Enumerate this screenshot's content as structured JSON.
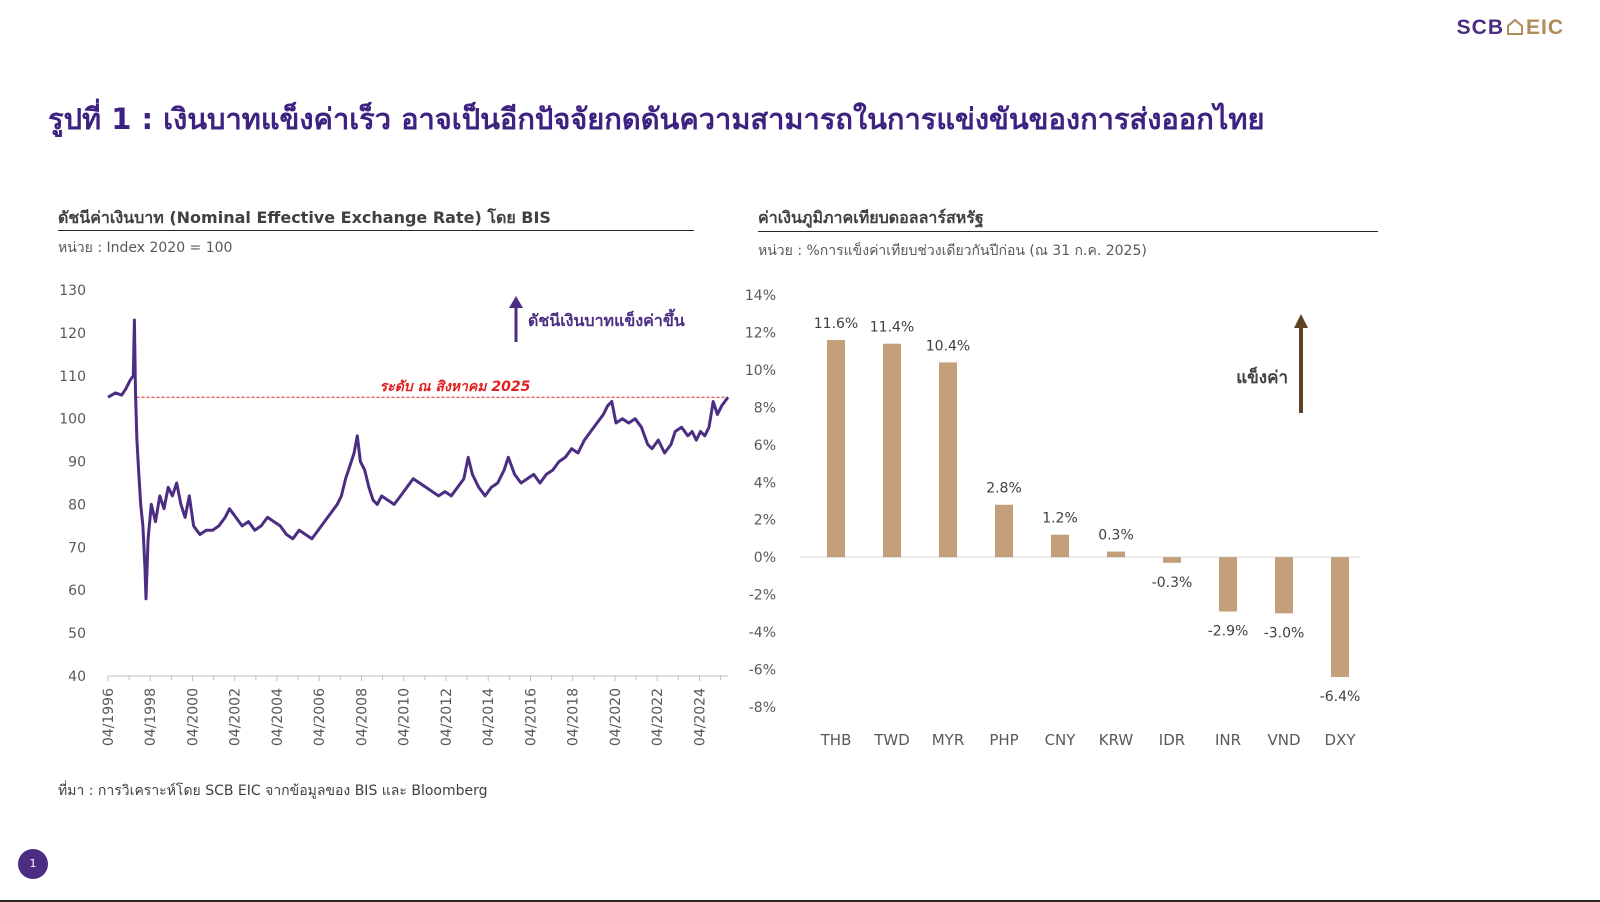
{
  "brand": {
    "scb": "SCB",
    "eic": "EIC"
  },
  "page_title": "รูปที่ 1 : เงินบาทแข็งค่าเร็ว อาจเป็นอีกปัจจัยกดดันความสามารถในการแข่งขันของการส่งออกไทย",
  "left_chart": {
    "title": "ดัชนีค่าเงินบาท (Nominal Effective Exchange Rate) โดย BIS",
    "unit": "หน่วย : Index 2020 = 100"
  },
  "right_chart": {
    "title": "ค่าเงินภูมิภาคเทียบดอลลาร์สหรัฐ",
    "unit": "หน่วย : %การแข็งค่าเทียบช่วงเดียวกันปีก่อน (ณ 31 ก.ค. 2025)"
  },
  "source": "ที่มา : การวิเคราะห์โดย SCB EIC จากข้อมูลของ BIS และ Bloomberg",
  "page_number": "1",
  "colors": {
    "brand_purple": "#3d2281",
    "line": "#4b2e83",
    "bar": "#c4a07a",
    "ref_red": "#e02020",
    "arrow_brown": "#5c4326"
  },
  "chart_data": [
    {
      "type": "line",
      "ylim": [
        40,
        130
      ],
      "yticks": [
        "40",
        "50",
        "60",
        "70",
        "80",
        "90",
        "100",
        "110",
        "120",
        "130"
      ],
      "xlabels": [
        "04/1996",
        "04/1998",
        "04/2000",
        "04/2002",
        "04/2004",
        "04/2006",
        "04/2008",
        "04/2010",
        "04/2012",
        "04/2014",
        "04/2016",
        "04/2018",
        "04/2020",
        "04/2022",
        "04/2024"
      ],
      "xlim": [
        1996.25,
        2025.6
      ],
      "series": [
        {
          "points": [
            [
              1996.25,
              105
            ],
            [
              1996.6,
              106
            ],
            [
              1996.9,
              105.5
            ],
            [
              1997.1,
              107
            ],
            [
              1997.3,
              109
            ],
            [
              1997.45,
              110
            ],
            [
              1997.5,
              123
            ],
            [
              1997.55,
              106
            ],
            [
              1997.62,
              95
            ],
            [
              1997.7,
              88
            ],
            [
              1997.8,
              80
            ],
            [
              1997.9,
              75
            ],
            [
              1998.0,
              65
            ],
            [
              1998.05,
              58
            ],
            [
              1998.15,
              72
            ],
            [
              1998.3,
              80
            ],
            [
              1998.5,
              76
            ],
            [
              1998.7,
              82
            ],
            [
              1998.9,
              79
            ],
            [
              1999.1,
              84
            ],
            [
              1999.3,
              82
            ],
            [
              1999.5,
              85
            ],
            [
              1999.7,
              80
            ],
            [
              1999.9,
              77
            ],
            [
              2000.1,
              82
            ],
            [
              2000.3,
              75
            ],
            [
              2000.6,
              73
            ],
            [
              2000.9,
              74
            ],
            [
              2001.2,
              74
            ],
            [
              2001.5,
              75
            ],
            [
              2001.8,
              77
            ],
            [
              2002.0,
              79
            ],
            [
              2002.3,
              77
            ],
            [
              2002.6,
              75
            ],
            [
              2002.9,
              76
            ],
            [
              2003.2,
              74
            ],
            [
              2003.5,
              75
            ],
            [
              2003.8,
              77
            ],
            [
              2004.1,
              76
            ],
            [
              2004.4,
              75
            ],
            [
              2004.7,
              73
            ],
            [
              2005.0,
              72
            ],
            [
              2005.3,
              74
            ],
            [
              2005.6,
              73
            ],
            [
              2005.9,
              72
            ],
            [
              2006.2,
              74
            ],
            [
              2006.5,
              76
            ],
            [
              2006.8,
              78
            ],
            [
              2007.1,
              80
            ],
            [
              2007.3,
              82
            ],
            [
              2007.5,
              86
            ],
            [
              2007.7,
              89
            ],
            [
              2007.9,
              92
            ],
            [
              2008.05,
              96
            ],
            [
              2008.2,
              90
            ],
            [
              2008.4,
              88
            ],
            [
              2008.6,
              84
            ],
            [
              2008.8,
              81
            ],
            [
              2009.0,
              80
            ],
            [
              2009.2,
              82
            ],
            [
              2009.5,
              81
            ],
            [
              2009.8,
              80
            ],
            [
              2010.1,
              82
            ],
            [
              2010.4,
              84
            ],
            [
              2010.7,
              86
            ],
            [
              2011.0,
              85
            ],
            [
              2011.3,
              84
            ],
            [
              2011.6,
              83
            ],
            [
              2011.9,
              82
            ],
            [
              2012.2,
              83
            ],
            [
              2012.5,
              82
            ],
            [
              2012.8,
              84
            ],
            [
              2013.1,
              86
            ],
            [
              2013.3,
              91
            ],
            [
              2013.5,
              87
            ],
            [
              2013.8,
              84
            ],
            [
              2014.1,
              82
            ],
            [
              2014.4,
              84
            ],
            [
              2014.7,
              85
            ],
            [
              2015.0,
              88
            ],
            [
              2015.2,
              91
            ],
            [
              2015.5,
              87
            ],
            [
              2015.8,
              85
            ],
            [
              2016.1,
              86
            ],
            [
              2016.4,
              87
            ],
            [
              2016.7,
              85
            ],
            [
              2017.0,
              87
            ],
            [
              2017.3,
              88
            ],
            [
              2017.6,
              90
            ],
            [
              2017.9,
              91
            ],
            [
              2018.2,
              93
            ],
            [
              2018.5,
              92
            ],
            [
              2018.8,
              95
            ],
            [
              2019.1,
              97
            ],
            [
              2019.4,
              99
            ],
            [
              2019.7,
              101
            ],
            [
              2019.9,
              103
            ],
            [
              2020.1,
              104
            ],
            [
              2020.3,
              99
            ],
            [
              2020.6,
              100
            ],
            [
              2020.9,
              99
            ],
            [
              2021.2,
              100
            ],
            [
              2021.5,
              98
            ],
            [
              2021.8,
              94
            ],
            [
              2022.0,
              93
            ],
            [
              2022.3,
              95
            ],
            [
              2022.6,
              92
            ],
            [
              2022.9,
              94
            ],
            [
              2023.1,
              97
            ],
            [
              2023.4,
              98
            ],
            [
              2023.7,
              96
            ],
            [
              2023.9,
              97
            ],
            [
              2024.1,
              95
            ],
            [
              2024.3,
              97
            ],
            [
              2024.5,
              96
            ],
            [
              2024.7,
              98
            ],
            [
              2024.9,
              104
            ],
            [
              2025.1,
              101
            ],
            [
              2025.3,
              103
            ],
            [
              2025.6,
              105
            ]
          ]
        }
      ],
      "reference_line": {
        "y": 105,
        "label": "ระดับ ณ สิงหาคม 2025"
      },
      "annotation": "ดัชนีเงินบาทแข็งค่าขึ้น"
    },
    {
      "type": "bar",
      "categories": [
        "THB",
        "TWD",
        "MYR",
        "PHP",
        "CNY",
        "KRW",
        "IDR",
        "INR",
        "VND",
        "DXY"
      ],
      "values": [
        11.6,
        11.4,
        10.4,
        2.8,
        1.2,
        0.3,
        -0.3,
        -2.9,
        -3.0,
        -6.4
      ],
      "data_labels": [
        "11.6%",
        "11.4%",
        "10.4%",
        "2.8%",
        "1.2%",
        "0.3%",
        "-0.3%",
        "-2.9%",
        "-3.0%",
        "-6.4%"
      ],
      "ylim": [
        -8,
        14
      ],
      "yticks": [
        "-8%",
        "-6%",
        "-4%",
        "-2%",
        "0%",
        "2%",
        "4%",
        "6%",
        "8%",
        "10%",
        "12%",
        "14%"
      ],
      "annotation": "แข็งค่า"
    }
  ]
}
